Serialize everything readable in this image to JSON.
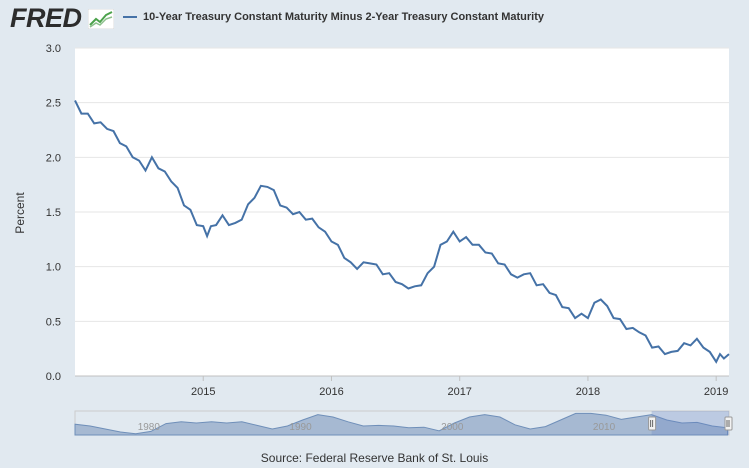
{
  "header": {
    "logo_text": "FRED",
    "logo_icon": "chart-trend-icon"
  },
  "chart_data": {
    "type": "line",
    "title": "",
    "series": [
      {
        "name": "10-Year Treasury Constant Maturity Minus 2-Year Treasury Constant Maturity",
        "color": "#4572a7",
        "points": [
          [
            2014.0,
            2.5
          ],
          [
            2014.05,
            2.42
          ],
          [
            2014.1,
            2.38
          ],
          [
            2014.15,
            2.33
          ],
          [
            2014.2,
            2.3
          ],
          [
            2014.25,
            2.28
          ],
          [
            2014.3,
            2.22
          ],
          [
            2014.35,
            2.15
          ],
          [
            2014.4,
            2.08
          ],
          [
            2014.45,
            2.02
          ],
          [
            2014.5,
            1.95
          ],
          [
            2014.55,
            1.9
          ],
          [
            2014.6,
            1.98
          ],
          [
            2014.65,
            1.92
          ],
          [
            2014.7,
            1.85
          ],
          [
            2014.75,
            1.8
          ],
          [
            2014.8,
            1.7
          ],
          [
            2014.85,
            1.58
          ],
          [
            2014.9,
            1.5
          ],
          [
            2014.95,
            1.4
          ],
          [
            2015.0,
            1.35
          ],
          [
            2015.03,
            1.3
          ],
          [
            2015.06,
            1.35
          ],
          [
            2015.1,
            1.4
          ],
          [
            2015.15,
            1.45
          ],
          [
            2015.2,
            1.4
          ],
          [
            2015.25,
            1.38
          ],
          [
            2015.3,
            1.45
          ],
          [
            2015.35,
            1.55
          ],
          [
            2015.4,
            1.65
          ],
          [
            2015.45,
            1.72
          ],
          [
            2015.5,
            1.75
          ],
          [
            2015.55,
            1.68
          ],
          [
            2015.6,
            1.58
          ],
          [
            2015.65,
            1.52
          ],
          [
            2015.7,
            1.5
          ],
          [
            2015.75,
            1.48
          ],
          [
            2015.8,
            1.45
          ],
          [
            2015.85,
            1.42
          ],
          [
            2015.9,
            1.38
          ],
          [
            2015.95,
            1.3
          ],
          [
            2016.0,
            1.25
          ],
          [
            2016.05,
            1.18
          ],
          [
            2016.1,
            1.1
          ],
          [
            2016.15,
            1.02
          ],
          [
            2016.2,
            1.0
          ],
          [
            2016.25,
            1.02
          ],
          [
            2016.3,
            1.05
          ],
          [
            2016.35,
            1.0
          ],
          [
            2016.4,
            0.95
          ],
          [
            2016.45,
            0.92
          ],
          [
            2016.5,
            0.88
          ],
          [
            2016.55,
            0.82
          ],
          [
            2016.6,
            0.82
          ],
          [
            2016.65,
            0.8
          ],
          [
            2016.7,
            0.85
          ],
          [
            2016.75,
            0.92
          ],
          [
            2016.8,
            1.02
          ],
          [
            2016.85,
            1.18
          ],
          [
            2016.9,
            1.25
          ],
          [
            2016.95,
            1.3
          ],
          [
            2017.0,
            1.25
          ],
          [
            2017.05,
            1.25
          ],
          [
            2017.1,
            1.22
          ],
          [
            2017.15,
            1.18
          ],
          [
            2017.2,
            1.15
          ],
          [
            2017.25,
            1.1
          ],
          [
            2017.3,
            1.05
          ],
          [
            2017.35,
            1.0
          ],
          [
            2017.4,
            0.95
          ],
          [
            2017.45,
            0.88
          ],
          [
            2017.5,
            0.95
          ],
          [
            2017.55,
            0.92
          ],
          [
            2017.6,
            0.85
          ],
          [
            2017.65,
            0.82
          ],
          [
            2017.7,
            0.78
          ],
          [
            2017.75,
            0.72
          ],
          [
            2017.8,
            0.65
          ],
          [
            2017.85,
            0.6
          ],
          [
            2017.9,
            0.55
          ],
          [
            2017.95,
            0.55
          ],
          [
            2018.0,
            0.55
          ],
          [
            2018.05,
            0.65
          ],
          [
            2018.1,
            0.72
          ],
          [
            2018.15,
            0.62
          ],
          [
            2018.2,
            0.55
          ],
          [
            2018.25,
            0.5
          ],
          [
            2018.3,
            0.45
          ],
          [
            2018.35,
            0.42
          ],
          [
            2018.4,
            0.42
          ],
          [
            2018.45,
            0.35
          ],
          [
            2018.5,
            0.28
          ],
          [
            2018.55,
            0.25
          ],
          [
            2018.6,
            0.22
          ],
          [
            2018.65,
            0.2
          ],
          [
            2018.7,
            0.25
          ],
          [
            2018.75,
            0.28
          ],
          [
            2018.8,
            0.3
          ],
          [
            2018.85,
            0.32
          ],
          [
            2018.9,
            0.28
          ],
          [
            2018.95,
            0.2
          ],
          [
            2019.0,
            0.15
          ],
          [
            2019.03,
            0.18
          ],
          [
            2019.06,
            0.18
          ],
          [
            2019.1,
            0.18
          ]
        ]
      }
    ],
    "xlim": [
      2014.0,
      2019.1
    ],
    "ylim": [
      0.0,
      3.0
    ],
    "x_ticks": [
      2015,
      2016,
      2017,
      2018,
      2019
    ],
    "x_tick_labels": [
      "2015",
      "2016",
      "2017",
      "2018",
      "2019"
    ],
    "y_ticks": [
      0.0,
      0.5,
      1.0,
      1.5,
      2.0,
      2.5,
      3.0
    ],
    "y_tick_labels": [
      "0.0",
      "0.5",
      "1.0",
      "1.5",
      "2.0",
      "2.5",
      "3.0"
    ],
    "ylabel": "Percent",
    "xlabel": "",
    "grid": true,
    "navigator": {
      "labels": [
        "1980",
        "1990",
        "2000",
        "2010"
      ],
      "label_years": [
        1980,
        1990,
        2000,
        2010
      ],
      "xlim": [
        1976,
        2019.1
      ],
      "selected_range": [
        2014.0,
        2019.1
      ],
      "values": [
        [
          1976,
          0.8
        ],
        [
          1977,
          0.5
        ],
        [
          1978,
          0.0
        ],
        [
          1979,
          -0.5
        ],
        [
          1980,
          -0.8
        ],
        [
          1981,
          -0.4
        ],
        [
          1982,
          0.9
        ],
        [
          1983,
          1.2
        ],
        [
          1984,
          1.0
        ],
        [
          1985,
          1.2
        ],
        [
          1986,
          1.0
        ],
        [
          1987,
          1.2
        ],
        [
          1988,
          0.6
        ],
        [
          1989,
          0.0
        ],
        [
          1990,
          0.5
        ],
        [
          1991,
          1.5
        ],
        [
          1992,
          2.4
        ],
        [
          1993,
          2.0
        ],
        [
          1994,
          1.2
        ],
        [
          1995,
          0.5
        ],
        [
          1996,
          0.6
        ],
        [
          1997,
          0.5
        ],
        [
          1998,
          0.2
        ],
        [
          1999,
          0.3
        ],
        [
          2000,
          -0.3
        ],
        [
          2001,
          1.0
        ],
        [
          2002,
          2.0
        ],
        [
          2003,
          2.4
        ],
        [
          2004,
          2.0
        ],
        [
          2005,
          0.7
        ],
        [
          2006,
          0.0
        ],
        [
          2007,
          0.4
        ],
        [
          2008,
          1.5
        ],
        [
          2009,
          2.6
        ],
        [
          2010,
          2.6
        ],
        [
          2011,
          2.3
        ],
        [
          2012,
          1.6
        ],
        [
          2013,
          2.0
        ],
        [
          2014,
          2.4
        ],
        [
          2015,
          1.5
        ],
        [
          2016,
          1.0
        ],
        [
          2017,
          1.1
        ],
        [
          2018,
          0.5
        ],
        [
          2019,
          0.2
        ]
      ]
    }
  },
  "source": "Source: Federal Reserve Bank of St. Louis"
}
